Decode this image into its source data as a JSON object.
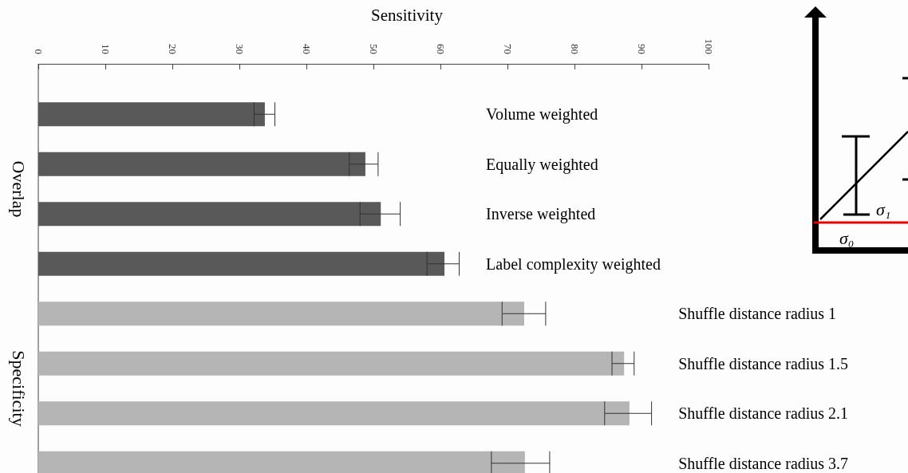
{
  "chart_data": {
    "type": "bar",
    "orientation": "horizontal",
    "xlabel": "Sensitivity",
    "categories": [
      "Volume weighted",
      "Equally weighted",
      "Inverse weighted",
      "Label complexity weighted",
      "Shuffle distance radius 1",
      "Shuffle distance radius 1.5",
      "Shuffle distance radius 2.1",
      "Shuffle distance radius 3.7"
    ],
    "series": [
      {
        "name": "Overlap",
        "color": "#595959",
        "values": [
          33.8,
          48.8,
          51.1,
          60.6,
          null,
          null,
          null,
          null
        ],
        "errors": [
          [
            32.2,
            35.3
          ],
          [
            46.4,
            50.7
          ],
          [
            48.0,
            54.0
          ],
          [
            58.0,
            62.8
          ],
          null,
          null,
          null,
          null
        ]
      },
      {
        "name": "Specificity",
        "color": "#b5b5b5",
        "values": [
          null,
          null,
          null,
          null,
          72.5,
          87.4,
          88.2,
          72.6
        ],
        "errors": [
          null,
          null,
          null,
          null,
          [
            69.2,
            75.7
          ],
          [
            85.6,
            88.9
          ],
          [
            84.5,
            91.5
          ],
          [
            67.6,
            76.3
          ]
        ]
      }
    ],
    "xlim": [
      0,
      100
    ],
    "xticks": [
      0,
      10,
      20,
      30,
      40,
      50,
      60,
      70,
      80,
      90,
      100
    ],
    "annotations": [
      "σ₁",
      "σ₀"
    ]
  }
}
